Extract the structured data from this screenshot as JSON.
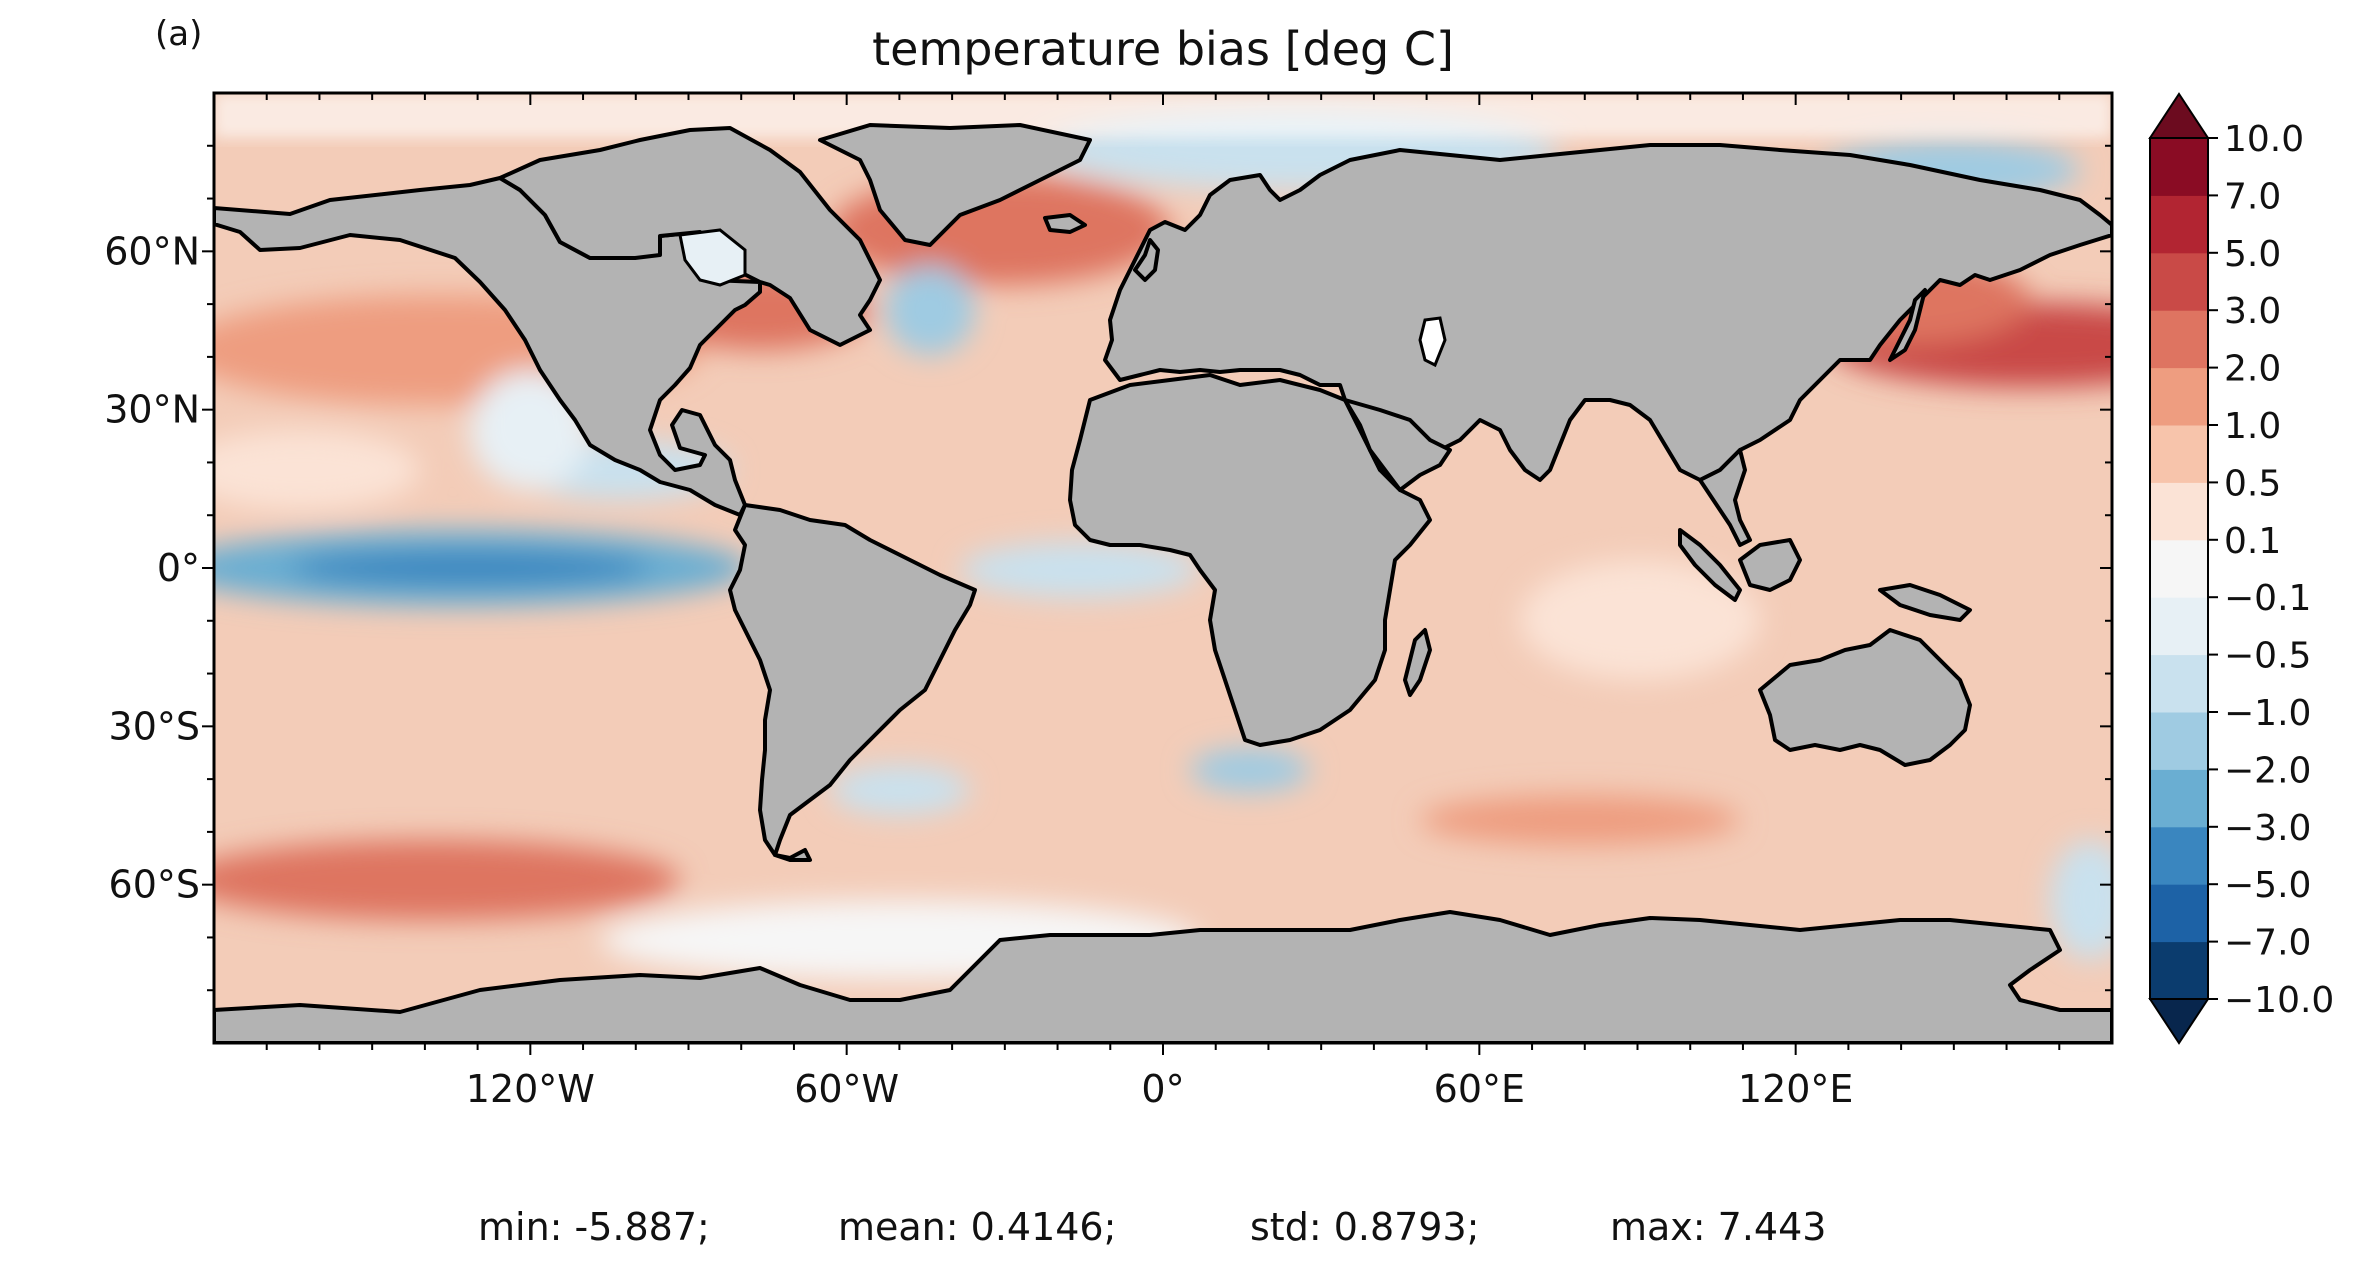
{
  "panel_label": "(a)",
  "title": "temperature bias [deg C]",
  "x_ticks": [
    {
      "lon": -120,
      "label": "120°W"
    },
    {
      "lon": -60,
      "label": "60°W"
    },
    {
      "lon": 0,
      "label": "0°"
    },
    {
      "lon": 60,
      "label": "60°E"
    },
    {
      "lon": 120,
      "label": "120°E"
    }
  ],
  "y_ticks": [
    {
      "lat": 60,
      "label": "60°N"
    },
    {
      "lat": 30,
      "label": "30°N"
    },
    {
      "lat": 0,
      "label": "0°"
    },
    {
      "lat": -30,
      "label": "30°S"
    },
    {
      "lat": -60,
      "label": "60°S"
    }
  ],
  "map_extent": {
    "lon": [
      -180,
      180
    ],
    "lat": [
      -90,
      90
    ]
  },
  "colorbar": {
    "extend": "both",
    "levels": [
      "−10.0",
      "−7.0",
      "−5.0",
      "−3.0",
      "−2.0",
      "−1.0",
      "−0.5",
      "−0.1",
      "0.1",
      "0.5",
      "1.0",
      "2.0",
      "3.0",
      "5.0",
      "7.0",
      "10.0"
    ],
    "colors": [
      "#0b3c6e",
      "#1d62a6",
      "#3a86bf",
      "#6aaed2",
      "#9fcbe2",
      "#c9e1ee",
      "#e7f0f5",
      "#f6f6f6",
      "#fbe3d6",
      "#f7c4ab",
      "#ee9d80",
      "#de7461",
      "#c94a47",
      "#b22532",
      "#8a0c24"
    ],
    "under_color": "#08264d",
    "over_color": "#6c0b1f"
  },
  "land_color": "#b3b3b3",
  "ocean_base_color": "#f3ccb8",
  "stats": {
    "min": "min: -5.887;",
    "mean": "mean: 0.4146;",
    "std": "std: 0.8793;",
    "max": "max: 7.443"
  }
}
